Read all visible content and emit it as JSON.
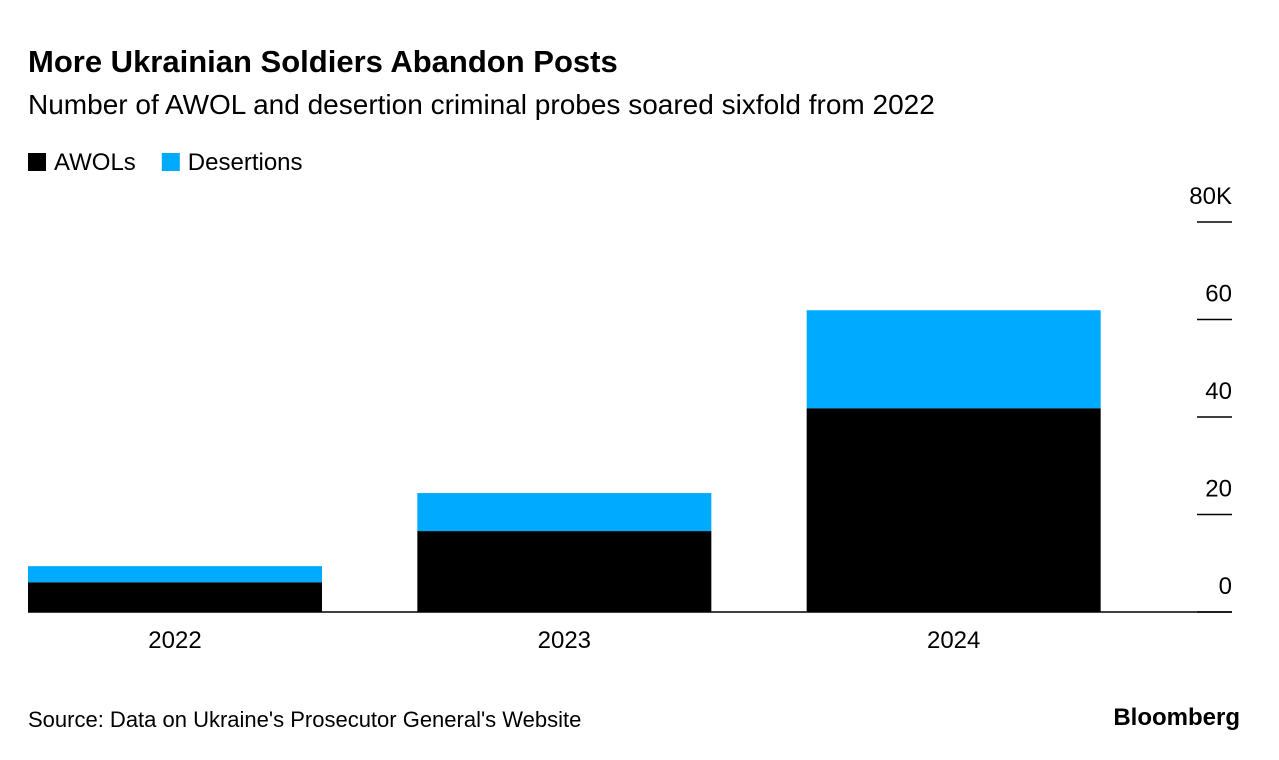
{
  "chart_data": {
    "type": "stacked_bar",
    "title": "More Ukrainian Soldiers Abandon Posts",
    "subtitle": "Number of AWOL and desertion criminal probes soared sixfold from 2022",
    "categories": [
      "2022",
      "2023",
      "2024"
    ],
    "series": [
      {
        "name": "AWOLs",
        "color": "#000000",
        "values": [
          6.1,
          16.6,
          41.8
        ]
      },
      {
        "name": "Desertions",
        "color": "#00aaff",
        "values": [
          3.3,
          7.8,
          20.1
        ]
      }
    ],
    "ylim": [
      0,
      80
    ],
    "yticks": [
      0,
      20,
      40,
      60,
      {
        "value": 80,
        "label": "80K"
      }
    ],
    "legend": "top-left",
    "source": "Source: Data on Ukraine's Prosecutor General's Website",
    "brand": "Bloomberg"
  }
}
